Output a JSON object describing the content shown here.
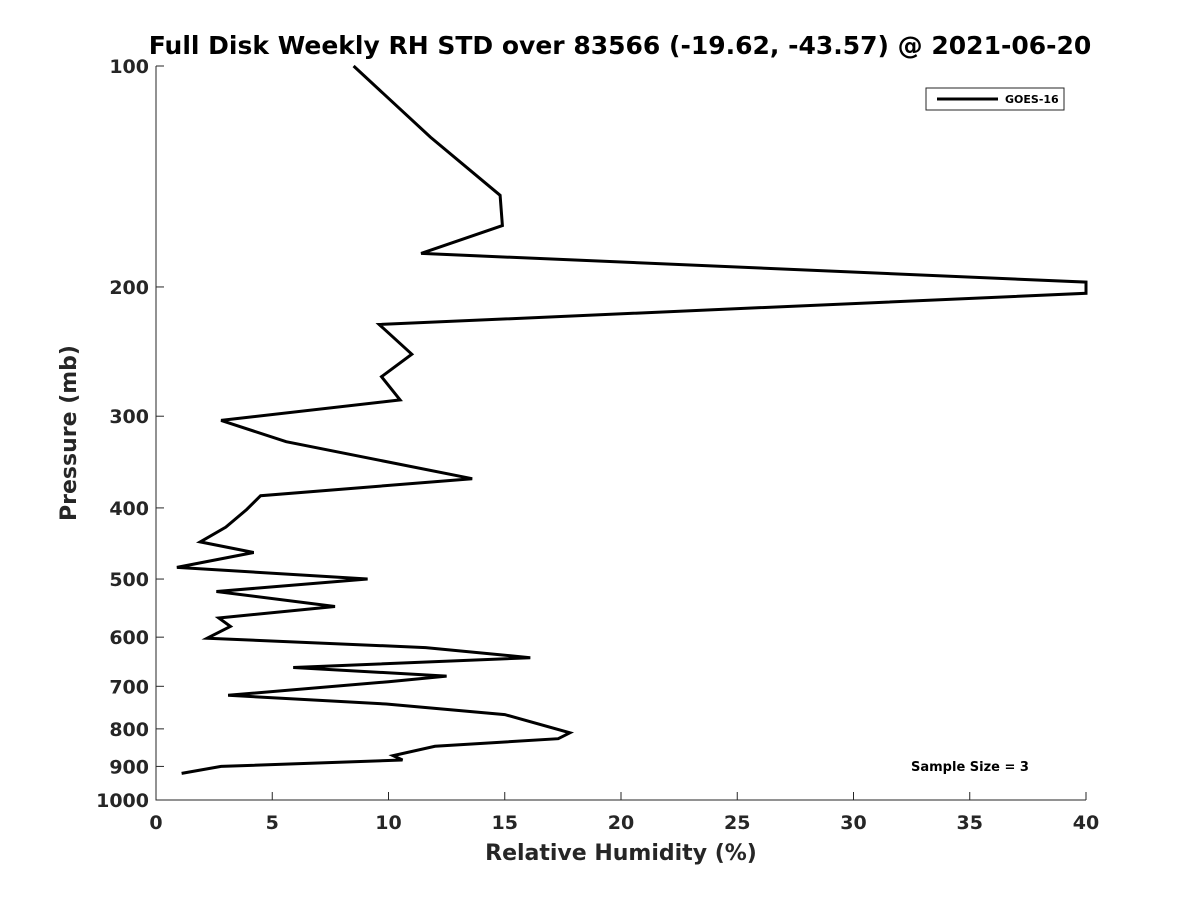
{
  "chart_data": {
    "type": "line",
    "title": "Full Disk Weekly RH STD over 83566 (-19.62, -43.57) @ 2021-06-20",
    "xlabel": "Relative Humidity (%)",
    "ylabel": "Pressure (mb)",
    "xlim": [
      0,
      40
    ],
    "ylim": [
      100,
      1000
    ],
    "yscale": "log",
    "y_reversed": true,
    "grid": false,
    "xticks": [
      0,
      5,
      10,
      15,
      20,
      25,
      30,
      35,
      40
    ],
    "xtick_labels": [
      "0",
      "5",
      "10",
      "15",
      "20",
      "25",
      "30",
      "35",
      "40"
    ],
    "yticks": [
      100,
      200,
      300,
      400,
      500,
      600,
      700,
      800,
      900,
      1000
    ],
    "ytick_labels": [
      "100",
      "200",
      "300",
      "400",
      "500",
      "600",
      "700",
      "800",
      "900",
      "1000"
    ],
    "legend": {
      "placement": "top-right",
      "entries": [
        "GOES-16"
      ]
    },
    "annotation": "Sample Size = 3",
    "series": [
      {
        "name": "GOES-16",
        "color": "#000000",
        "points": [
          [
            8.5,
            100
          ],
          [
            11.8,
            125
          ],
          [
            14.8,
            150
          ],
          [
            14.9,
            165
          ],
          [
            11.4,
            180
          ],
          [
            40.0,
            197
          ],
          [
            40.0,
            204
          ],
          [
            9.6,
            225
          ],
          [
            11.0,
            247
          ],
          [
            9.7,
            265
          ],
          [
            10.5,
            285
          ],
          [
            2.8,
            304
          ],
          [
            5.6,
            325
          ],
          [
            13.6,
            365
          ],
          [
            4.5,
            385
          ],
          [
            3.9,
            402
          ],
          [
            3.0,
            425
          ],
          [
            1.9,
            445
          ],
          [
            4.2,
            460
          ],
          [
            0.9,
            482
          ],
          [
            9.1,
            500
          ],
          [
            2.6,
            520
          ],
          [
            7.7,
            545
          ],
          [
            2.7,
            565
          ],
          [
            3.2,
            580
          ],
          [
            2.2,
            602
          ],
          [
            11.6,
            620
          ],
          [
            16.1,
            640
          ],
          [
            5.9,
            660
          ],
          [
            12.5,
            678
          ],
          [
            10.0,
            690
          ],
          [
            3.1,
            720
          ],
          [
            9.9,
            740
          ],
          [
            15.0,
            765
          ],
          [
            17.8,
            810
          ],
          [
            17.3,
            825
          ],
          [
            12.0,
            845
          ],
          [
            10.2,
            870
          ],
          [
            10.6,
            882
          ],
          [
            2.8,
            900
          ],
          [
            1.1,
            920
          ]
        ]
      }
    ]
  }
}
